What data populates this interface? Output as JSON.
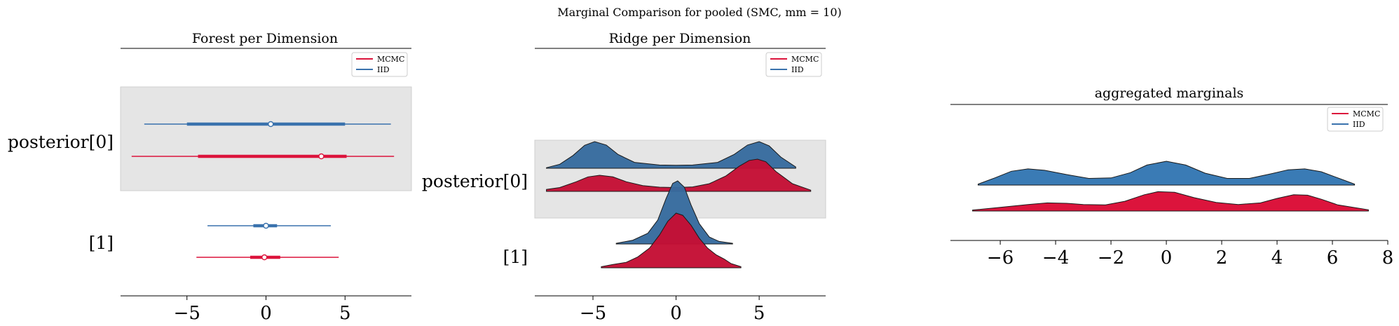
{
  "figure": {
    "suptitle": "Marginal Comparison for pooled (SMC, mm = 10)"
  },
  "colors": {
    "MCMC": "#dc143c",
    "IID": "#3a72ad",
    "band": "#e5e5e5"
  },
  "legend": [
    "MCMC",
    "IID"
  ],
  "chart_data": [
    {
      "type": "forest",
      "title": "Forest per Dimension",
      "xlim": [
        -9.2,
        9.2
      ],
      "xticks": [
        -5,
        0,
        5
      ],
      "xtick_labels": [
        "−5",
        "0",
        "5"
      ],
      "rows": [
        "posterior[0]",
        "[1]"
      ],
      "legend_position": "top-right",
      "series": [
        {
          "name": "IID",
          "rows": [
            {
              "whisker": [
                -7.7,
                7.9
              ],
              "box": [
                -5.0,
                5.0
              ],
              "point": 0.3
            },
            {
              "whisker": [
                -3.7,
                4.1
              ],
              "box": [
                -0.8,
                0.7
              ],
              "point": 0.0
            }
          ]
        },
        {
          "name": "MCMC",
          "rows": [
            {
              "whisker": [
                -8.5,
                8.1
              ],
              "box": [
                -4.3,
                5.1
              ],
              "point": 3.5
            },
            {
              "whisker": [
                -4.4,
                4.6
              ],
              "box": [
                -1.0,
                0.9
              ],
              "point": -0.1
            }
          ]
        }
      ]
    },
    {
      "type": "ridge",
      "title": "Ridge per Dimension",
      "xlim": [
        -8.5,
        9.0
      ],
      "xticks": [
        -5,
        0,
        5
      ],
      "xtick_labels": [
        "−5",
        "0",
        "5"
      ],
      "rows": [
        "posterior[0]",
        "[1]"
      ],
      "legend_position": "top-right",
      "series": [
        {
          "name": "IID",
          "rows": [
            {
              "x": [
                -7.8,
                -7.0,
                -6.2,
                -5.5,
                -4.9,
                -4.2,
                -3.5,
                -2.5,
                -1.0,
                0.0,
                1.0,
                2.5,
                3.5,
                4.3,
                5.0,
                5.6,
                6.3,
                7.2
              ],
              "y": [
                0.02,
                0.15,
                0.48,
                0.86,
                1.0,
                0.87,
                0.52,
                0.22,
                0.12,
                0.11,
                0.12,
                0.22,
                0.52,
                0.87,
                1.0,
                0.84,
                0.42,
                0.05
              ]
            },
            {
              "x": [
                -3.6,
                -2.6,
                -1.7,
                -1.1,
                -0.6,
                -0.2,
                0.1,
                0.5,
                0.9,
                1.4,
                2.0,
                2.6,
                3.4
              ],
              "y": [
                0.01,
                0.06,
                0.17,
                0.38,
                0.72,
                0.96,
                1.0,
                0.9,
                0.62,
                0.32,
                0.11,
                0.04,
                0.01
              ]
            }
          ]
        },
        {
          "name": "MCMC",
          "rows": [
            {
              "x": [
                -7.8,
                -7.0,
                -6.0,
                -5.3,
                -4.6,
                -3.8,
                -3.0,
                -2.0,
                -1.0,
                0.0,
                1.0,
                2.0,
                3.0,
                3.8,
                4.4,
                4.9,
                5.4,
                6.0,
                7.0,
                8.1
              ],
              "y": [
                0.06,
                0.12,
                0.3,
                0.45,
                0.5,
                0.45,
                0.3,
                0.18,
                0.13,
                0.12,
                0.14,
                0.24,
                0.48,
                0.78,
                0.96,
                1.0,
                0.92,
                0.62,
                0.24,
                0.04
              ]
            },
            {
              "x": [
                -4.5,
                -3.8,
                -3.0,
                -2.3,
                -1.6,
                -1.0,
                -0.5,
                0.0,
                0.4,
                0.9,
                1.4,
                1.9,
                2.4,
                2.9,
                3.3,
                3.9
              ],
              "y": [
                0.02,
                0.06,
                0.1,
                0.2,
                0.36,
                0.6,
                0.85,
                1.0,
                0.96,
                0.78,
                0.54,
                0.36,
                0.24,
                0.16,
                0.08,
                0.02
              ]
            }
          ]
        }
      ]
    },
    {
      "type": "ridge",
      "title": "aggregated marginals",
      "xlim": [
        -7.8,
        8.0
      ],
      "xticks": [
        -6,
        -4,
        -2,
        0,
        2,
        4,
        6,
        8
      ],
      "xtick_labels": [
        "−6",
        "−4",
        "−2",
        "0",
        "2",
        "4",
        "6",
        "8"
      ],
      "legend_position": "top-right",
      "series": [
        {
          "name": "IID",
          "x": [
            -6.8,
            -6.2,
            -5.6,
            -5.0,
            -4.4,
            -3.6,
            -2.8,
            -2.0,
            -1.3,
            -0.7,
            0.0,
            0.7,
            1.4,
            2.2,
            3.0,
            3.8,
            4.4,
            5.0,
            5.6,
            6.2,
            6.8
          ],
          "y": [
            0.04,
            0.3,
            0.58,
            0.68,
            0.62,
            0.44,
            0.28,
            0.3,
            0.52,
            0.84,
            1.0,
            0.84,
            0.5,
            0.28,
            0.28,
            0.48,
            0.64,
            0.68,
            0.56,
            0.3,
            0.04
          ]
        },
        {
          "name": "MCMC",
          "x": [
            -7.0,
            -6.0,
            -5.0,
            -4.3,
            -3.6,
            -3.0,
            -2.2,
            -1.5,
            -0.8,
            -0.3,
            0.3,
            1.0,
            1.8,
            2.6,
            3.4,
            4.0,
            4.6,
            5.1,
            5.6,
            6.2,
            7.3
          ],
          "y": [
            0.05,
            0.18,
            0.32,
            0.4,
            0.38,
            0.32,
            0.3,
            0.48,
            0.8,
            0.95,
            0.92,
            0.66,
            0.42,
            0.32,
            0.4,
            0.62,
            0.8,
            0.78,
            0.58,
            0.3,
            0.06
          ]
        }
      ]
    }
  ]
}
